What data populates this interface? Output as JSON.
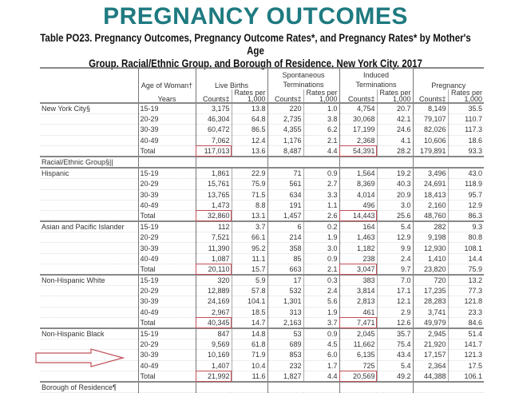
{
  "title": "PREGNANCY OUTCOMES",
  "subtitle_line1": "Table PO23. Pregnancy Outcomes, Pregnancy Outcome Rates*, and Pregnancy Rates* by Mother's Age",
  "subtitle_line2": "Group, Racial/Ethnic Group, and Borough of Residence, New York City, 2017",
  "header": {
    "age": "Age of Woman†",
    "years": "Years",
    "live_births": "Live Births",
    "spontaneous": "Spontaneous Terminations",
    "induced": "Induced Terminations",
    "pregnancy": "Pregnancy",
    "counts": "Counts‡",
    "rates": "Rates per 1,000"
  },
  "accent_color": "#1e7a80",
  "highlight_color": "#c0505a",
  "groups": [
    {
      "label": "New York City§",
      "rows": [
        [
          "15-19",
          "3,175",
          "13.8",
          "220",
          "1.0",
          "4,754",
          "20.7",
          "8,149",
          "35.5"
        ],
        [
          "20-29",
          "46,304",
          "64.8",
          "2,735",
          "3.8",
          "30,068",
          "42.1",
          "79,107",
          "110.7"
        ],
        [
          "30-39",
          "60,472",
          "86.5",
          "4,355",
          "6.2",
          "17,199",
          "24.6",
          "82,026",
          "117.3"
        ],
        [
          "40-49",
          "7,062",
          "12.4",
          "1,176",
          "2.1",
          "2,368",
          "4.1",
          "10,606",
          "18.6"
        ],
        [
          "Total",
          "117,013",
          "13.6",
          "8,487",
          "4.4",
          "54,391",
          "28.2",
          "179,891",
          "93.3"
        ]
      ]
    },
    {
      "label": "Racial/Ethnic Group§||",
      "section": true,
      "rows": []
    },
    {
      "label": "Hispanic",
      "rows": [
        [
          "15-19",
          "1,861",
          "22.9",
          "71",
          "0.9",
          "1,564",
          "19.2",
          "3,496",
          "43.0"
        ],
        [
          "20-29",
          "15,761",
          "75.9",
          "561",
          "2.7",
          "8,369",
          "40.3",
          "24,691",
          "118.9"
        ],
        [
          "30-39",
          "13,765",
          "71.5",
          "634",
          "3.3",
          "4,014",
          "20.9",
          "18,413",
          "95.7"
        ],
        [
          "40-49",
          "1,473",
          "8.8",
          "191",
          "1.1",
          "496",
          "3.0",
          "2,160",
          "12.9"
        ],
        [
          "Total",
          "32,860",
          "13.1",
          "1,457",
          "2.6",
          "14,443",
          "25.6",
          "48,760",
          "86.3"
        ]
      ]
    },
    {
      "label": "Asian and Pacific Islander",
      "rows": [
        [
          "15-19",
          "112",
          "3.7",
          "6",
          "0.2",
          "164",
          "5.4",
          "282",
          "9.3"
        ],
        [
          "20-29",
          "7,521",
          "66.1",
          "214",
          "1.9",
          "1,463",
          "12.9",
          "9,198",
          "80.8"
        ],
        [
          "30-39",
          "11,390",
          "95.2",
          "358",
          "3.0",
          "1,182",
          "9.9",
          "12,930",
          "108.1"
        ],
        [
          "40-49",
          "1,087",
          "11.1",
          "85",
          "0.9",
          "238",
          "2.4",
          "1,410",
          "14.4"
        ],
        [
          "Total",
          "20,110",
          "15.7",
          "663",
          "2.1",
          "3,047",
          "9.7",
          "23,820",
          "75.9"
        ]
      ]
    },
    {
      "label": "Non-Hispanic White",
      "rows": [
        [
          "15-19",
          "320",
          "5.9",
          "17",
          "0.3",
          "383",
          "7.0",
          "720",
          "13.2"
        ],
        [
          "20-29",
          "12,889",
          "57.8",
          "532",
          "2.4",
          "3,814",
          "17.1",
          "17,235",
          "77.3"
        ],
        [
          "30-39",
          "24,169",
          "104.1",
          "1,301",
          "5.6",
          "2,813",
          "12.1",
          "28,283",
          "121.8"
        ],
        [
          "40-49",
          "2,967",
          "18.5",
          "313",
          "1.9",
          "461",
          "2.9",
          "3,741",
          "23.3"
        ],
        [
          "Total",
          "40,345",
          "14.7",
          "2,163",
          "3.7",
          "7,471",
          "12.6",
          "49,979",
          "84.6"
        ]
      ]
    },
    {
      "label": "Non-Hispanic Black",
      "rows": [
        [
          "15-19",
          "847",
          "14.8",
          "53",
          "0.9",
          "2,045",
          "35.7",
          "2,945",
          "51.4"
        ],
        [
          "20-29",
          "9,569",
          "61.8",
          "689",
          "4.5",
          "11,662",
          "75.4",
          "21,920",
          "141.7"
        ],
        [
          "30-39",
          "10,169",
          "71.9",
          "853",
          "6.0",
          "6,135",
          "43.4",
          "17,157",
          "121.3"
        ],
        [
          "40-49",
          "1,407",
          "10.4",
          "232",
          "1.7",
          "725",
          "5.4",
          "2,364",
          "17.5"
        ],
        [
          "Total",
          "21,992",
          "11.6",
          "1,827",
          "4.4",
          "20,569",
          "49.2",
          "44,388",
          "106.1"
        ]
      ]
    },
    {
      "label": "Borough of Residence¶",
      "section": true,
      "rows": []
    }
  ]
}
